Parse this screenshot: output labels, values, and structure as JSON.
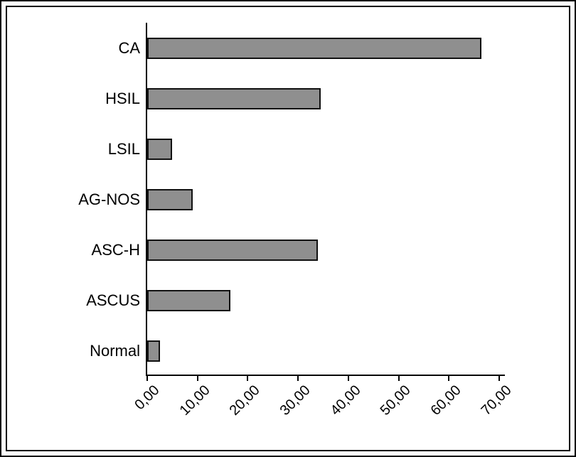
{
  "chart_data": {
    "type": "bar",
    "orientation": "horizontal",
    "title": "",
    "xlabel": "",
    "ylabel": "",
    "grid": false,
    "legend": false,
    "categories": [
      "CA",
      "HSIL",
      "LSIL",
      "AG-NOS",
      "ASC-H",
      "ASCUS",
      "Normal"
    ],
    "values": [
      66.5,
      34.5,
      5.0,
      9.0,
      34.0,
      16.5,
      2.5
    ],
    "xlim": [
      0,
      70
    ],
    "x_ticks": [
      0,
      10,
      20,
      30,
      40,
      50,
      60,
      70
    ],
    "x_tick_labels": [
      "0,00",
      "10,00",
      "20,00",
      "30,00",
      "40,00",
      "50,00",
      "60,00",
      "70,00"
    ],
    "decimal_separator": ",",
    "bar_color": "#8f8f8f",
    "bar_border_color": "#111111",
    "axis_color": "#000000",
    "background_color": "#ffffff"
  }
}
